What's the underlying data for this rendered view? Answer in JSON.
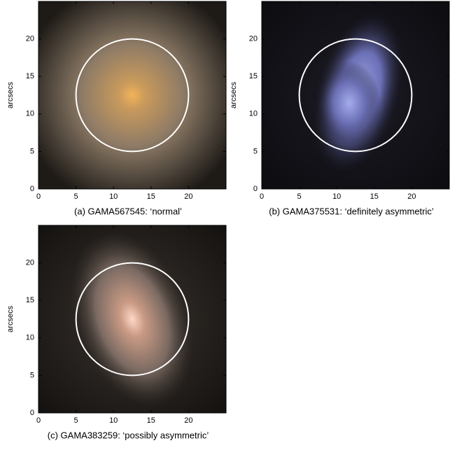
{
  "chart_data": [
    {
      "type": "image",
      "caption": "(a) GAMA567545: ‘normal’",
      "ylabel": "arcsecs",
      "xlim": [
        0,
        25
      ],
      "ylim": [
        0,
        25
      ],
      "xticks": [
        0,
        5,
        10,
        15,
        20
      ],
      "yticks": [
        0,
        5,
        10,
        15,
        20
      ],
      "circle": {
        "x": 12.5,
        "y": 12.5,
        "r": 7.5
      }
    },
    {
      "type": "image",
      "caption": "(b) GAMA375531: ‘definitely asymmetric’",
      "ylabel": "arcsecs",
      "xlim": [
        0,
        25
      ],
      "ylim": [
        0,
        25
      ],
      "xticks": [
        0,
        5,
        10,
        15,
        20
      ],
      "yticks": [
        0,
        5,
        10,
        15,
        20
      ],
      "circle": {
        "x": 12.5,
        "y": 12.5,
        "r": 7.5
      }
    },
    {
      "type": "image",
      "caption": "(c) GAMA383259: ‘possibly asymmetric’",
      "ylabel": "arcsecs",
      "xlim": [
        0,
        25
      ],
      "ylim": [
        0,
        25
      ],
      "xticks": [
        0,
        5,
        10,
        15,
        20
      ],
      "yticks": [
        0,
        5,
        10,
        15,
        20
      ],
      "circle": {
        "x": 12.5,
        "y": 12.5,
        "r": 7.5
      }
    }
  ]
}
